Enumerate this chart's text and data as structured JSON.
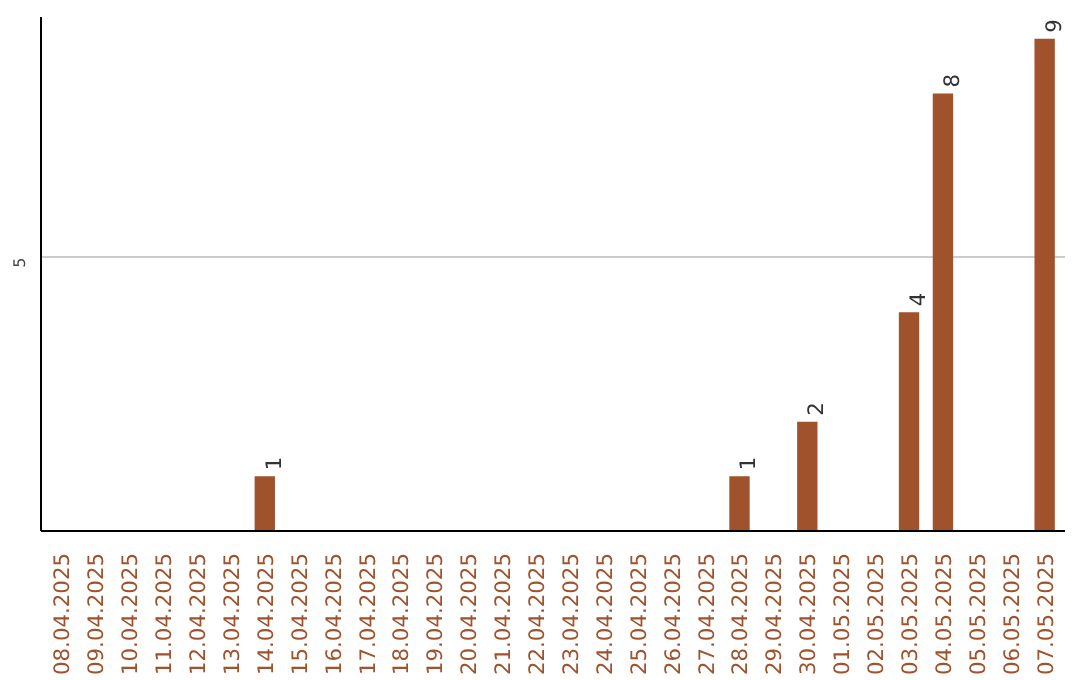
{
  "chart_data": {
    "type": "bar",
    "categories": [
      "08.04.2025",
      "09.04.2025",
      "10.04.2025",
      "11.04.2025",
      "12.04.2025",
      "13.04.2025",
      "14.04.2025",
      "15.04.2025",
      "16.04.2025",
      "17.04.2025",
      "18.04.2025",
      "19.04.2025",
      "20.04.2025",
      "21.04.2025",
      "22.04.2025",
      "23.04.2025",
      "24.04.2025",
      "25.04.2025",
      "26.04.2025",
      "27.04.2025",
      "28.04.2025",
      "29.04.2025",
      "30.04.2025",
      "01.05.2025",
      "02.05.2025",
      "03.05.2025",
      "04.05.2025",
      "05.05.2025",
      "06.05.2025",
      "07.05.2025"
    ],
    "values": [
      0,
      0,
      0,
      0,
      0,
      0,
      1,
      0,
      0,
      0,
      0,
      0,
      0,
      0,
      0,
      0,
      0,
      0,
      0,
      0,
      1,
      0,
      2,
      0,
      0,
      4,
      8,
      0,
      0,
      9
    ],
    "color": "#a0522d",
    "value_labels": [
      null,
      null,
      null,
      null,
      null,
      null,
      "1",
      null,
      null,
      null,
      null,
      null,
      null,
      null,
      null,
      null,
      null,
      null,
      null,
      null,
      "1",
      null,
      "2",
      null,
      null,
      "4",
      "8",
      null,
      null,
      "9"
    ],
    "ylim": [
      0,
      9.4
    ],
    "yticks": [
      5
    ],
    "grid": "y"
  }
}
